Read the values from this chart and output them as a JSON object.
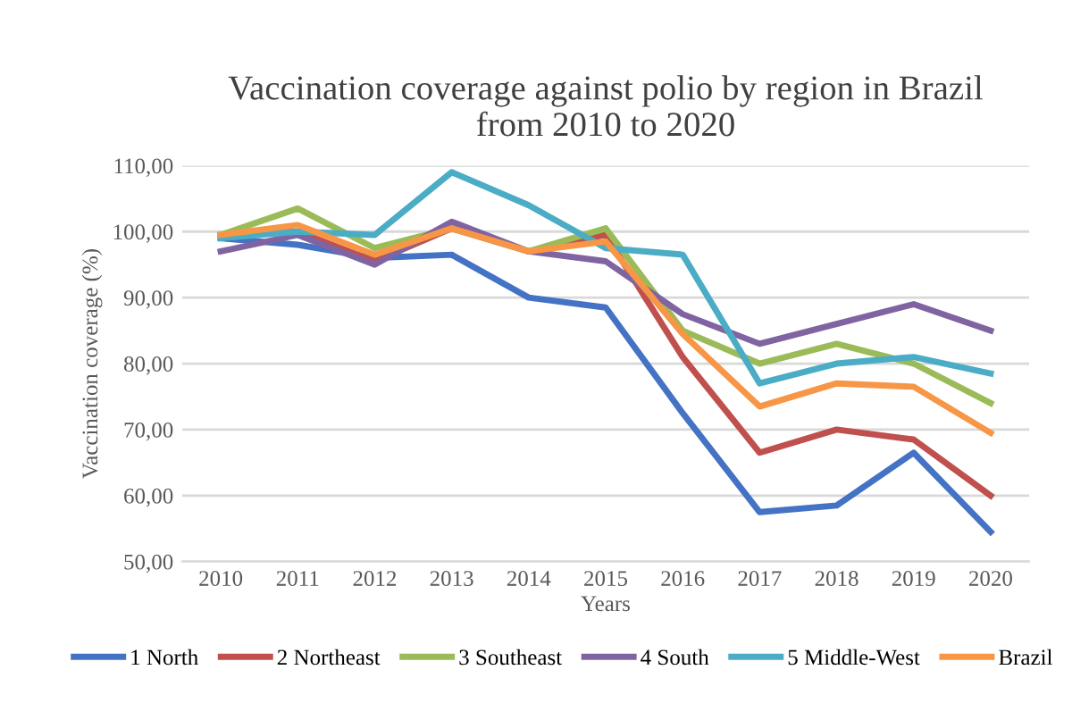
{
  "chart_data": {
    "type": "line",
    "title": "Vaccination coverage against polio by region in Brazil\nfrom 2010 to 2020",
    "xlabel": "Years",
    "ylabel": "Vaccination coverage (%)",
    "categories": [
      "2010",
      "2011",
      "2012",
      "2013",
      "2014",
      "2015",
      "2016",
      "2017",
      "2018",
      "2019",
      "2020"
    ],
    "ylim": [
      50,
      110
    ],
    "yticks": [
      {
        "value": 50,
        "label": "50,00"
      },
      {
        "value": 60,
        "label": "60,00"
      },
      {
        "value": 70,
        "label": "70,00"
      },
      {
        "value": 80,
        "label": "80,00"
      },
      {
        "value": 90,
        "label": "90,00"
      },
      {
        "value": 100,
        "label": "100,00"
      },
      {
        "value": 110,
        "label": "110,00"
      }
    ],
    "grid": "y",
    "legend": "bottom",
    "marker": "none",
    "line_style": "solid",
    "series": [
      {
        "name": "1 North",
        "color": "#4472c4",
        "values": [
          99,
          98,
          96,
          96.5,
          90,
          88.5,
          72.5,
          57.5,
          58.5,
          66.5,
          54.5
        ]
      },
      {
        "name": "2 Northeast",
        "color": "#c0504d",
        "values": [
          99.5,
          100,
          95.5,
          100.5,
          97,
          99.5,
          81,
          66.5,
          70,
          68.5,
          60
        ]
      },
      {
        "name": "3 Southeast",
        "color": "#9bbb59",
        "values": [
          99.5,
          103.5,
          97.5,
          100.5,
          97,
          100.5,
          85,
          80,
          83,
          80,
          74
        ]
      },
      {
        "name": "4 South",
        "color": "#8064a2",
        "values": [
          97,
          99.5,
          95,
          101.5,
          97,
          95.5,
          87.5,
          83,
          86,
          89,
          85
        ]
      },
      {
        "name": "5 Middle-West",
        "color": "#4bacc6",
        "values": [
          99,
          100,
          99.5,
          109,
          104,
          97.5,
          96.5,
          77,
          80,
          81,
          78.5
        ]
      },
      {
        "name": "Brazil",
        "color": "#f79646",
        "values": [
          99.5,
          101,
          96.5,
          100.5,
          97,
          98.5,
          84.5,
          73.5,
          77,
          76.5,
          69.5
        ]
      }
    ]
  }
}
